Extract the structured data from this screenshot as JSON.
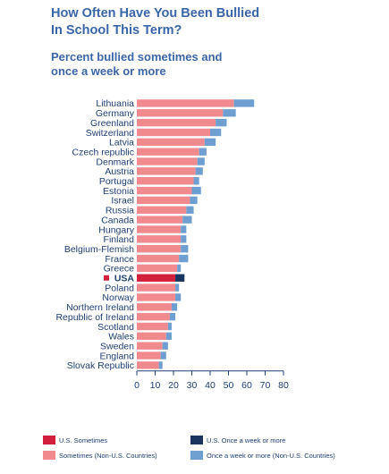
{
  "header": {
    "title_line1": "How Often Have You Been Bullied",
    "title_line2": "In School This Term?",
    "subtitle_line1": "Percent bullied sometimes and",
    "subtitle_line2": "once a week or more"
  },
  "colors": {
    "us_sometimes": "#d21f3c",
    "us_weekly": "#1b3561",
    "sometimes": "#f08a8e",
    "weekly": "#6f9fd1",
    "text": "#1f3f73"
  },
  "chart_data": {
    "type": "bar",
    "orientation": "horizontal",
    "stacked": true,
    "title": "How Often Have You Been Bullied In School This Term?",
    "subtitle": "Percent bullied sometimes and once a week or more",
    "xlim": [
      0,
      80
    ],
    "xticks": [
      0,
      10,
      20,
      30,
      40,
      50,
      60,
      70,
      80
    ],
    "highlight": "USA",
    "categories": [
      "Lithuania",
      "Germany",
      "Greenland",
      "Switzerland",
      "Latvia",
      "Czech republic",
      "Denmark",
      "Austria",
      "Portugal",
      "Estonia",
      "Israel",
      "Russia",
      "Canada",
      "Hungary",
      "Finland",
      "Belgium-Flemish",
      "France",
      "Greece",
      "USA",
      "Poland",
      "Norway",
      "Northern Ireland",
      "Republic of Ireland",
      "Scotland",
      "Wales",
      "Sweden",
      "England",
      "Slovak Republic"
    ],
    "series": [
      {
        "name": "Sometimes",
        "values": [
          53,
          47,
          43,
          40,
          37,
          34,
          33,
          32,
          31,
          30,
          29,
          27,
          25,
          24,
          24,
          24,
          23,
          22,
          21,
          21,
          21,
          19,
          18,
          17,
          16,
          14,
          13,
          12
        ]
      },
      {
        "name": "Once a week or more",
        "values": [
          11,
          7,
          6,
          6,
          6,
          4,
          4,
          4,
          3,
          5,
          4,
          4,
          5,
          3,
          3,
          4,
          5,
          2,
          5,
          2,
          3,
          3,
          3,
          2,
          3,
          3,
          3,
          2
        ]
      }
    ],
    "legend": [
      {
        "label": "U.S. Sometimes",
        "color": "#d21f3c"
      },
      {
        "label": "U.S. Once a week or more",
        "color": "#1b3561"
      },
      {
        "label": "Sometimes (Non-U.S. Countries)",
        "color": "#f08a8e"
      },
      {
        "label": "Once a week or more (Non-U.S. Countries)",
        "color": "#6f9fd1"
      }
    ]
  }
}
